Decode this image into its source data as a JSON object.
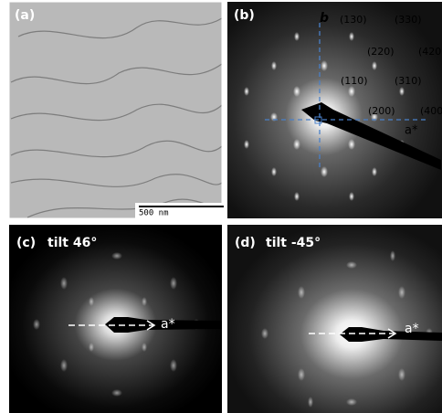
{
  "panels": [
    {
      "label": "(a)",
      "scale_bar": "500 nm"
    },
    {
      "label": "(b)",
      "axis_b": "b",
      "axis_a": "a*",
      "indices": [
        "(130)",
        "(330)",
        "(220)",
        "(420",
        "(110)",
        "(310)",
        "(200)",
        "(400"
      ]
    },
    {
      "label": "(c)",
      "tilt": "tilt 46°",
      "axis_a": "a*"
    },
    {
      "label": "(d)",
      "tilt": "tilt -45°",
      "axis_a": "a*"
    }
  ]
}
